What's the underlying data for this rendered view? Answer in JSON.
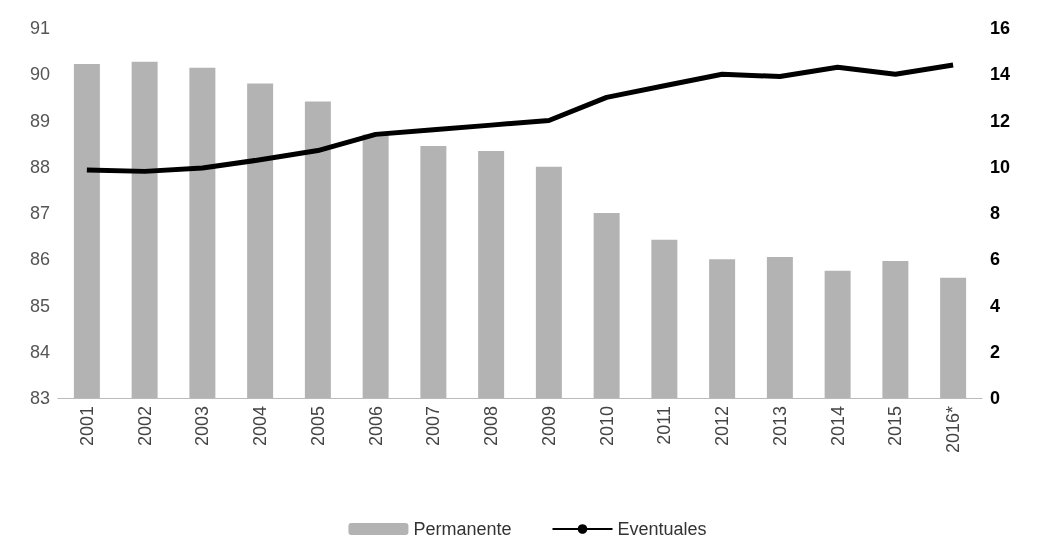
{
  "chart_data": {
    "type": "bar",
    "categories": [
      "2001",
      "2002",
      "2003",
      "2004",
      "2005",
      "2006",
      "2007",
      "2008",
      "2009",
      "2010",
      "2011",
      "2012",
      "2013",
      "2014",
      "2015",
      "2016*"
    ],
    "series": [
      {
        "name": "Permanente",
        "color": "#b3b3b3",
        "values": [
          90.22,
          90.27,
          90.14,
          89.8,
          89.41,
          88.7,
          88.45,
          88.34,
          88.0,
          87.0,
          86.42,
          86.0,
          86.05,
          85.75,
          85.96,
          85.6
        ]
      },
      {
        "name": "Eventuales",
        "type": "line",
        "axis": "y2",
        "color": "#000000",
        "values": [
          9.86,
          9.8,
          9.95,
          10.3,
          10.7,
          11.4,
          11.6,
          11.8,
          12.0,
          13.0,
          13.5,
          14.0,
          13.9,
          14.3,
          14.0,
          14.4
        ]
      }
    ],
    "ylim": [
      83,
      91
    ],
    "yticks": [
      83,
      84,
      85,
      86,
      87,
      88,
      89,
      90,
      91
    ],
    "y2lim": [
      0,
      16
    ],
    "y2ticks": [
      0,
      2,
      4,
      6,
      8,
      10,
      12,
      14,
      16
    ],
    "grid": false,
    "legend": "bottom",
    "marker": "none",
    "line_style": "solid"
  }
}
